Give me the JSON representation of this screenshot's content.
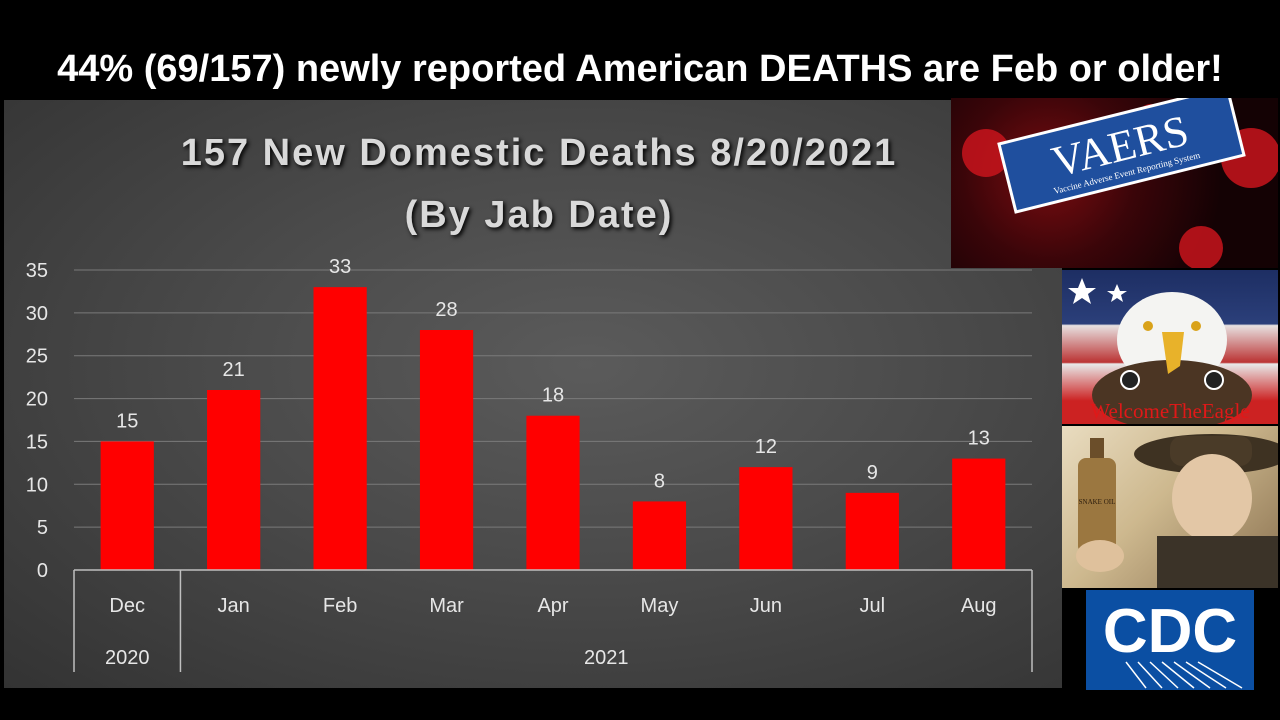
{
  "headline": "44% (69/157) newly reported American DEATHS are Feb or older!",
  "chart_data": {
    "type": "bar",
    "title": "157 New Domestic Deaths 8/20/2021",
    "subtitle": "(By Jab Date)",
    "categories": [
      "Dec",
      "Jan",
      "Feb",
      "Mar",
      "Apr",
      "May",
      "Jun",
      "Jul",
      "Aug"
    ],
    "values": [
      15,
      21,
      33,
      28,
      18,
      8,
      12,
      9,
      13
    ],
    "groups": [
      {
        "label": "2020",
        "start": 0,
        "end": 0
      },
      {
        "label": "2021",
        "start": 1,
        "end": 8
      }
    ],
    "ylim": [
      0,
      35
    ],
    "yticks": [
      0,
      5,
      10,
      15,
      20,
      25,
      30,
      35
    ],
    "bar_color": "#ff0000",
    "grid": true,
    "legend": "none"
  },
  "images": {
    "vaers": {
      "logo_text": "VAERS",
      "logo_subtitle": "Vaccine Adverse Event Reporting System"
    },
    "eagle": {
      "caption": "WelcomeTheEagle"
    },
    "fauci": {
      "bottle_label": "SNAKE OIL"
    },
    "cdc": {
      "logo_text": "CDC"
    }
  }
}
